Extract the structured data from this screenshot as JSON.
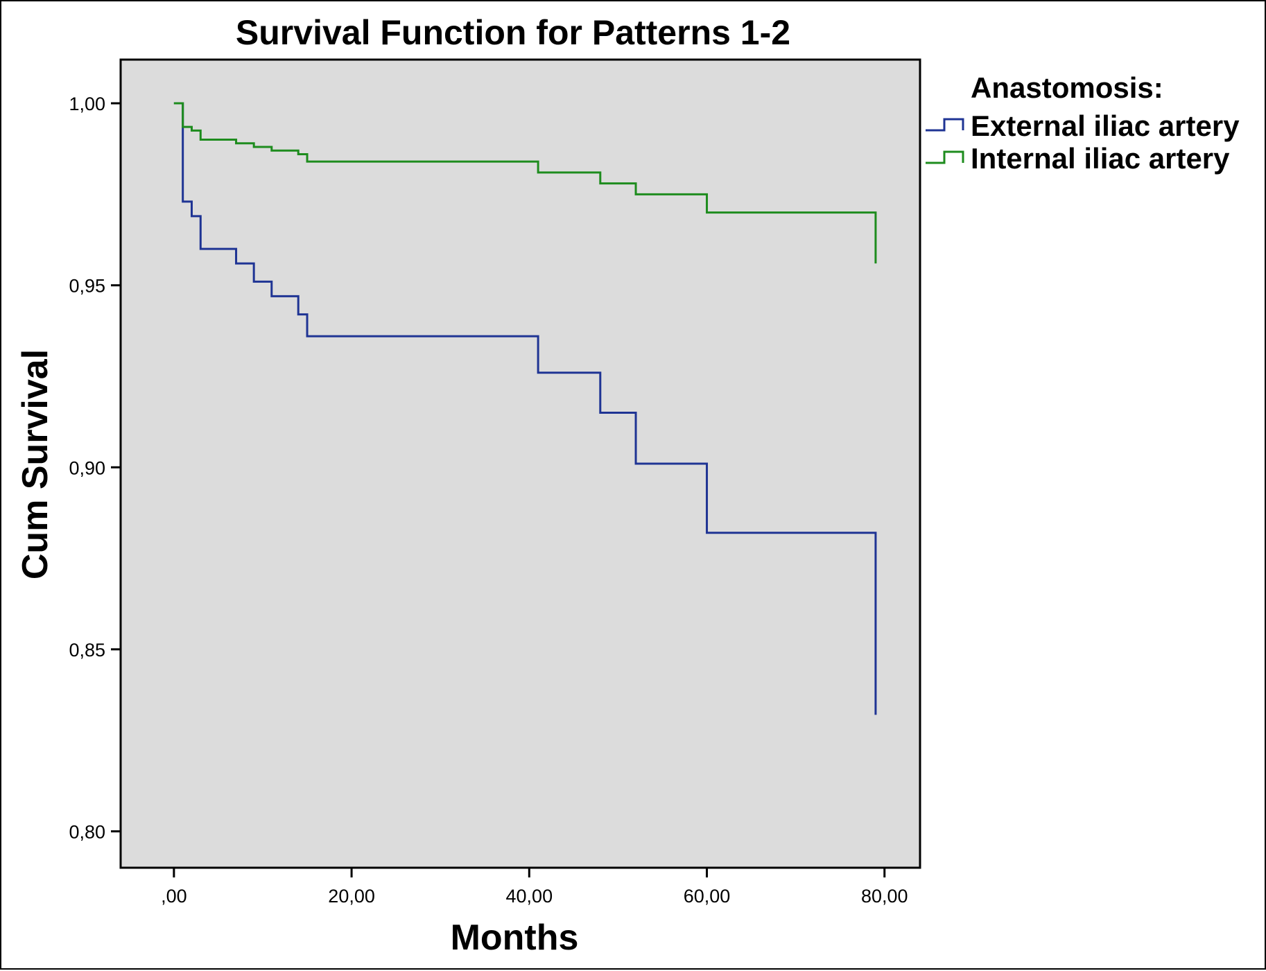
{
  "chart_data": {
    "type": "line",
    "step": true,
    "title": "Survival Function for Patterns 1-2",
    "xlabel": "Months",
    "ylabel": "Cum Survival",
    "xlim": [
      -6,
      84
    ],
    "ylim": [
      0.79,
      1.012
    ],
    "x_ticks": [
      0,
      20,
      40,
      60,
      80
    ],
    "x_tick_labels": [
      ",00",
      "20,00",
      "40,00",
      "60,00",
      "80,00"
    ],
    "y_ticks": [
      0.8,
      0.85,
      0.9,
      0.95,
      1.0
    ],
    "y_tick_labels": [
      "0,80",
      "0,85",
      "0,90",
      "0,95",
      "1,00"
    ],
    "grid": false,
    "plot_background": "#dcdcdc",
    "legend": {
      "title": "Anastomosis:",
      "position": "right"
    },
    "series": [
      {
        "name": "External iliac artery",
        "color": "#1f3494",
        "points": [
          [
            0,
            1.0
          ],
          [
            1,
            0.973
          ],
          [
            2,
            0.969
          ],
          [
            3,
            0.96
          ],
          [
            7,
            0.956
          ],
          [
            9,
            0.951
          ],
          [
            11,
            0.947
          ],
          [
            14,
            0.942
          ],
          [
            15,
            0.936
          ],
          [
            41,
            0.926
          ],
          [
            48,
            0.915
          ],
          [
            52,
            0.901
          ],
          [
            60,
            0.882
          ],
          [
            79,
            0.832
          ]
        ]
      },
      {
        "name": "Internal iliac artery",
        "color": "#1e8c1e",
        "points": [
          [
            0,
            1.0
          ],
          [
            1,
            0.9935
          ],
          [
            2,
            0.9925
          ],
          [
            3,
            0.99
          ],
          [
            7,
            0.989
          ],
          [
            9,
            0.988
          ],
          [
            11,
            0.987
          ],
          [
            14,
            0.986
          ],
          [
            15,
            0.984
          ],
          [
            41,
            0.981
          ],
          [
            48,
            0.978
          ],
          [
            52,
            0.975
          ],
          [
            60,
            0.97
          ],
          [
            79,
            0.956
          ]
        ]
      }
    ]
  }
}
